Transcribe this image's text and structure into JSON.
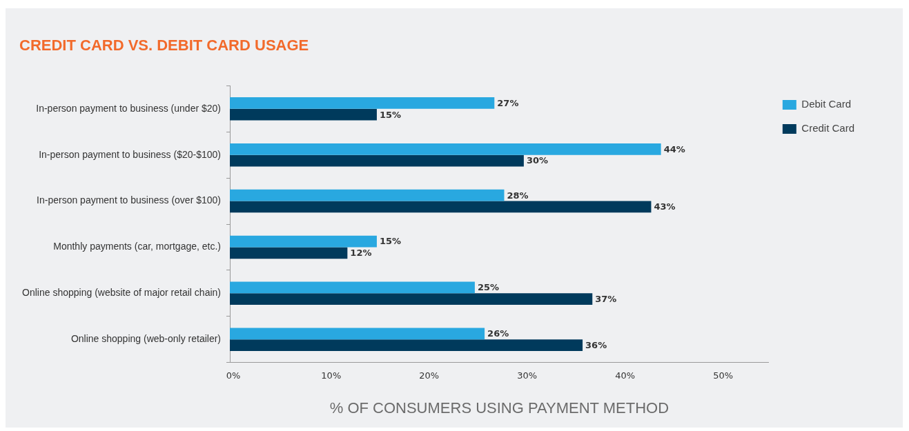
{
  "chart_data": {
    "type": "bar",
    "orientation": "horizontal",
    "title": "CREDIT CARD VS. DEBIT CARD USAGE",
    "xlabel": "% OF CONSUMERS USING PAYMENT METHOD",
    "categories": [
      "In-person payment to business (under $20)",
      "In-person payment to business ($20-$100)",
      "In-person payment to business (over $100)",
      "Monthly payments (car, mortgage, etc.)",
      "Online shopping (website of major retail chain)",
      "Online shopping (web-only retailer)"
    ],
    "series": [
      {
        "name": "Debit Card",
        "color": "#29a8e0",
        "values": [
          27,
          44,
          28,
          15,
          25,
          26
        ],
        "value_labels": [
          "27%",
          "44%",
          "28%",
          "15%",
          "25%",
          "26%"
        ]
      },
      {
        "name": "Credit Card",
        "color": "#003a5c",
        "values": [
          15,
          30,
          43,
          12,
          37,
          36
        ],
        "value_labels": [
          "15%",
          "30%",
          "43%",
          "12%",
          "37%",
          "36%"
        ]
      }
    ],
    "xlim": [
      0,
      55
    ],
    "xticks": [
      {
        "value": 0,
        "label": "0%"
      },
      {
        "value": 10,
        "label": "10%"
      },
      {
        "value": 20,
        "label": "20%"
      },
      {
        "value": 30,
        "label": "30%"
      },
      {
        "value": 40,
        "label": "40%"
      },
      {
        "value": 50,
        "label": "50%"
      }
    ],
    "legend": "top right"
  }
}
